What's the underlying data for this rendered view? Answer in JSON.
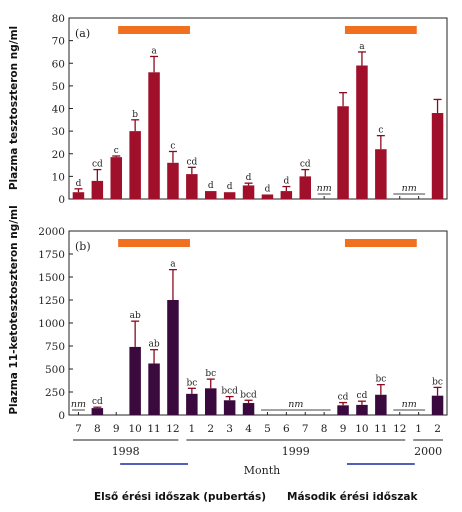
{
  "colors": {
    "bar_a": "#a0102a",
    "bar_b": "#3a0a3e",
    "error": "#8b0a1e",
    "season_bar": "#f07020",
    "season_line": "#1a2aa0",
    "axis": "#222222"
  },
  "xlabel": "Month",
  "years": [
    {
      "label": "1998",
      "from": 0,
      "to": 5
    },
    {
      "label": "1999",
      "from": 6,
      "to": 17
    },
    {
      "label": "2000",
      "from": 18,
      "to": 19
    }
  ],
  "captions": {
    "first": "Első érési időszak (pubertás)",
    "second": "Második érési időszak"
  },
  "chart_data": [
    {
      "type": "bar",
      "panel": "(a)",
      "ylabel": "Plazma tesztoszteron ng/ml",
      "ylim": [
        0,
        80
      ],
      "yticks": [
        0,
        10,
        20,
        30,
        40,
        50,
        60,
        70,
        80
      ],
      "categories": [
        "7",
        "8",
        "9",
        "10",
        "11",
        "12",
        "1",
        "2",
        "3",
        "4",
        "5",
        "6",
        "7",
        "8",
        "9",
        "10",
        "11",
        "12",
        "1",
        "2"
      ],
      "values": [
        3,
        8,
        18.5,
        30,
        56,
        16,
        11,
        3.5,
        3,
        6,
        2,
        3.5,
        10,
        null,
        41,
        59,
        22,
        null,
        null,
        38
      ],
      "errors": [
        1.5,
        5,
        0.5,
        5,
        7,
        5,
        3,
        0,
        0,
        1,
        0,
        2,
        3,
        null,
        6,
        6,
        6,
        null,
        null,
        6
      ],
      "significance": [
        "d",
        "cd",
        "c",
        "b",
        "a",
        "c",
        "cd",
        "d",
        "d",
        "d",
        "d",
        "d",
        "cd",
        "",
        "",
        "a",
        "c",
        "",
        "",
        ""
      ],
      "not_measured": [
        {
          "label": "nm",
          "from": 13,
          "to": 13
        },
        {
          "label": "nm",
          "from": 17,
          "to": 18
        }
      ],
      "season_bars": [
        {
          "from": 2.6,
          "to": 6.4
        },
        {
          "from": 14.6,
          "to": 18.4
        }
      ]
    },
    {
      "type": "bar",
      "panel": "(b)",
      "ylabel": "Plazma 11-ketotesztoszteron ng/ml",
      "ylim": [
        0,
        2000
      ],
      "yticks": [
        0,
        250,
        500,
        750,
        1000,
        1250,
        1500,
        1750,
        2000
      ],
      "categories": [
        "7",
        "8",
        "9",
        "10",
        "11",
        "12",
        "1",
        "2",
        "3",
        "4",
        "5",
        "6",
        "7",
        "8",
        "9",
        "10",
        "11",
        "12",
        "1",
        "2"
      ],
      "values": [
        null,
        75,
        null,
        740,
        560,
        1250,
        230,
        290,
        160,
        130,
        null,
        null,
        null,
        null,
        105,
        110,
        220,
        null,
        null,
        210
      ],
      "errors": [
        null,
        10,
        null,
        280,
        150,
        330,
        60,
        100,
        40,
        30,
        null,
        null,
        null,
        null,
        30,
        40,
        110,
        null,
        null,
        90
      ],
      "significance": [
        "",
        "cd",
        "",
        "ab",
        "ab",
        "a",
        "bc",
        "bc",
        "bcd",
        "bcd",
        "",
        "",
        "",
        "",
        "cd",
        "cd",
        "bc",
        "",
        "",
        "bc"
      ],
      "not_measured": [
        {
          "label": "nm",
          "from": 0,
          "to": 0
        },
        {
          "label": "nm",
          "from": 10,
          "to": 13
        },
        {
          "label": "nm",
          "from": 17,
          "to": 18
        }
      ],
      "season_bars": [
        {
          "from": 2.6,
          "to": 6.4
        },
        {
          "from": 14.6,
          "to": 18.4
        }
      ]
    }
  ]
}
